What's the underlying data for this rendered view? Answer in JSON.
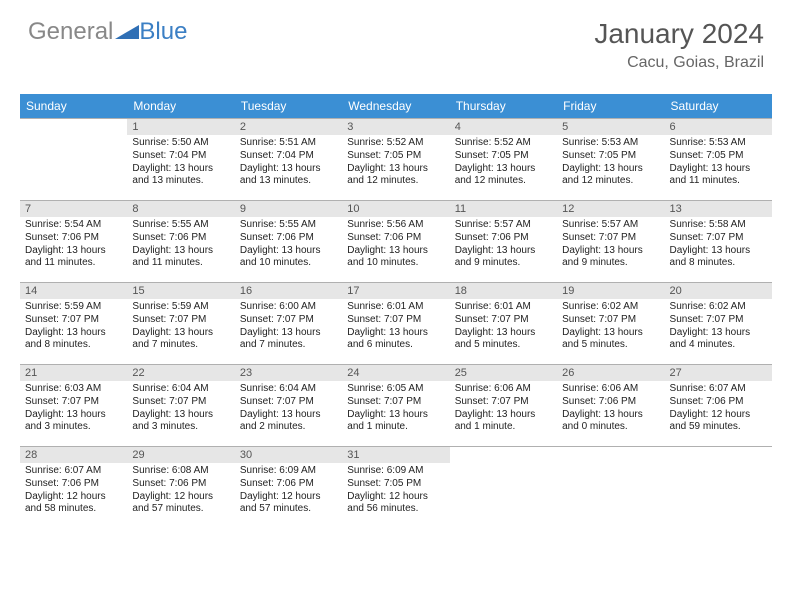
{
  "logo": {
    "text1": "General",
    "text2": "Blue",
    "icon_color": "#2f6fb5"
  },
  "title": "January 2024",
  "location": "Cacu, Goias, Brazil",
  "colors": {
    "header_bg": "#3b8fd4",
    "header_text": "#ffffff",
    "daynum_bg": "#e6e6e6",
    "daynum_text": "#555555",
    "border": "#b0b0b0",
    "body_text": "#222222"
  },
  "day_headers": [
    "Sunday",
    "Monday",
    "Tuesday",
    "Wednesday",
    "Thursday",
    "Friday",
    "Saturday"
  ],
  "weeks": [
    [
      null,
      {
        "n": "1",
        "sr": "5:50 AM",
        "ss": "7:04 PM",
        "dl": "13 hours and 13 minutes."
      },
      {
        "n": "2",
        "sr": "5:51 AM",
        "ss": "7:04 PM",
        "dl": "13 hours and 13 minutes."
      },
      {
        "n": "3",
        "sr": "5:52 AM",
        "ss": "7:05 PM",
        "dl": "13 hours and 12 minutes."
      },
      {
        "n": "4",
        "sr": "5:52 AM",
        "ss": "7:05 PM",
        "dl": "13 hours and 12 minutes."
      },
      {
        "n": "5",
        "sr": "5:53 AM",
        "ss": "7:05 PM",
        "dl": "13 hours and 12 minutes."
      },
      {
        "n": "6",
        "sr": "5:53 AM",
        "ss": "7:05 PM",
        "dl": "13 hours and 11 minutes."
      }
    ],
    [
      {
        "n": "7",
        "sr": "5:54 AM",
        "ss": "7:06 PM",
        "dl": "13 hours and 11 minutes."
      },
      {
        "n": "8",
        "sr": "5:55 AM",
        "ss": "7:06 PM",
        "dl": "13 hours and 11 minutes."
      },
      {
        "n": "9",
        "sr": "5:55 AM",
        "ss": "7:06 PM",
        "dl": "13 hours and 10 minutes."
      },
      {
        "n": "10",
        "sr": "5:56 AM",
        "ss": "7:06 PM",
        "dl": "13 hours and 10 minutes."
      },
      {
        "n": "11",
        "sr": "5:57 AM",
        "ss": "7:06 PM",
        "dl": "13 hours and 9 minutes."
      },
      {
        "n": "12",
        "sr": "5:57 AM",
        "ss": "7:07 PM",
        "dl": "13 hours and 9 minutes."
      },
      {
        "n": "13",
        "sr": "5:58 AM",
        "ss": "7:07 PM",
        "dl": "13 hours and 8 minutes."
      }
    ],
    [
      {
        "n": "14",
        "sr": "5:59 AM",
        "ss": "7:07 PM",
        "dl": "13 hours and 8 minutes."
      },
      {
        "n": "15",
        "sr": "5:59 AM",
        "ss": "7:07 PM",
        "dl": "13 hours and 7 minutes."
      },
      {
        "n": "16",
        "sr": "6:00 AM",
        "ss": "7:07 PM",
        "dl": "13 hours and 7 minutes."
      },
      {
        "n": "17",
        "sr": "6:01 AM",
        "ss": "7:07 PM",
        "dl": "13 hours and 6 minutes."
      },
      {
        "n": "18",
        "sr": "6:01 AM",
        "ss": "7:07 PM",
        "dl": "13 hours and 5 minutes."
      },
      {
        "n": "19",
        "sr": "6:02 AM",
        "ss": "7:07 PM",
        "dl": "13 hours and 5 minutes."
      },
      {
        "n": "20",
        "sr": "6:02 AM",
        "ss": "7:07 PM",
        "dl": "13 hours and 4 minutes."
      }
    ],
    [
      {
        "n": "21",
        "sr": "6:03 AM",
        "ss": "7:07 PM",
        "dl": "13 hours and 3 minutes."
      },
      {
        "n": "22",
        "sr": "6:04 AM",
        "ss": "7:07 PM",
        "dl": "13 hours and 3 minutes."
      },
      {
        "n": "23",
        "sr": "6:04 AM",
        "ss": "7:07 PM",
        "dl": "13 hours and 2 minutes."
      },
      {
        "n": "24",
        "sr": "6:05 AM",
        "ss": "7:07 PM",
        "dl": "13 hours and 1 minute."
      },
      {
        "n": "25",
        "sr": "6:06 AM",
        "ss": "7:07 PM",
        "dl": "13 hours and 1 minute."
      },
      {
        "n": "26",
        "sr": "6:06 AM",
        "ss": "7:06 PM",
        "dl": "13 hours and 0 minutes."
      },
      {
        "n": "27",
        "sr": "6:07 AM",
        "ss": "7:06 PM",
        "dl": "12 hours and 59 minutes."
      }
    ],
    [
      {
        "n": "28",
        "sr": "6:07 AM",
        "ss": "7:06 PM",
        "dl": "12 hours and 58 minutes."
      },
      {
        "n": "29",
        "sr": "6:08 AM",
        "ss": "7:06 PM",
        "dl": "12 hours and 57 minutes."
      },
      {
        "n": "30",
        "sr": "6:09 AM",
        "ss": "7:06 PM",
        "dl": "12 hours and 57 minutes."
      },
      {
        "n": "31",
        "sr": "6:09 AM",
        "ss": "7:05 PM",
        "dl": "12 hours and 56 minutes."
      },
      null,
      null,
      null
    ]
  ],
  "labels": {
    "sunrise": "Sunrise:",
    "sunset": "Sunset:",
    "daylight": "Daylight:"
  }
}
